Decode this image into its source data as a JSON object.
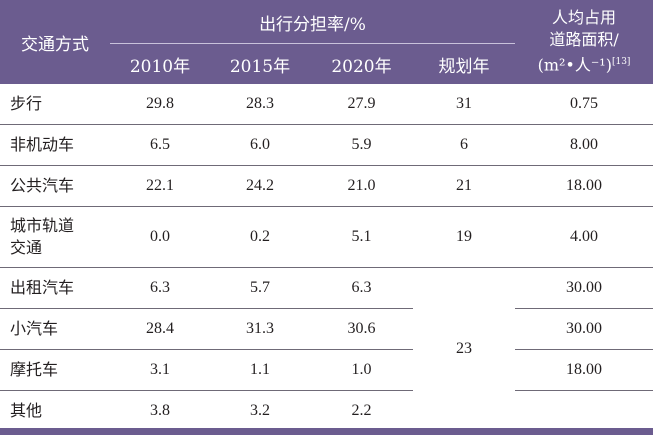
{
  "header": {
    "mode": "交通方式",
    "share_group": "出行分担率/%",
    "years": [
      "2010年",
      "2015年",
      "2020年",
      "规划年"
    ],
    "area_line1": "人均占用",
    "area_line2": "道路面积/",
    "area_line3": "(m²•人⁻¹)",
    "area_ref": "[13]"
  },
  "rows": [
    {
      "mode": "步行",
      "y2010": "29.8",
      "y2015": "28.3",
      "y2020": "27.9",
      "plan": "31",
      "area": "0.75"
    },
    {
      "mode": "非机动车",
      "y2010": "6.5",
      "y2015": "6.0",
      "y2020": "5.9",
      "plan": "6",
      "area": "8.00"
    },
    {
      "mode": "公共汽车",
      "y2010": "22.1",
      "y2015": "24.2",
      "y2020": "21.0",
      "plan": "21",
      "area": "18.00"
    },
    {
      "mode_line1": "城市轨道",
      "mode_line2": "交通",
      "y2010": "0.0",
      "y2015": "0.2",
      "y2020": "5.1",
      "plan": "19",
      "area": "4.00"
    },
    {
      "mode": "出租汽车",
      "y2010": "6.3",
      "y2015": "5.7",
      "y2020": "6.3",
      "area": "30.00"
    },
    {
      "mode": "小汽车",
      "y2010": "28.4",
      "y2015": "31.3",
      "y2020": "30.6",
      "area": "30.00"
    },
    {
      "mode": "摩托车",
      "y2010": "3.1",
      "y2015": "1.1",
      "y2020": "1.0",
      "area": "18.00"
    },
    {
      "mode": "其他",
      "y2010": "3.8",
      "y2015": "3.2",
      "y2020": "2.2",
      "area": ""
    }
  ],
  "merged_plan": "23"
}
